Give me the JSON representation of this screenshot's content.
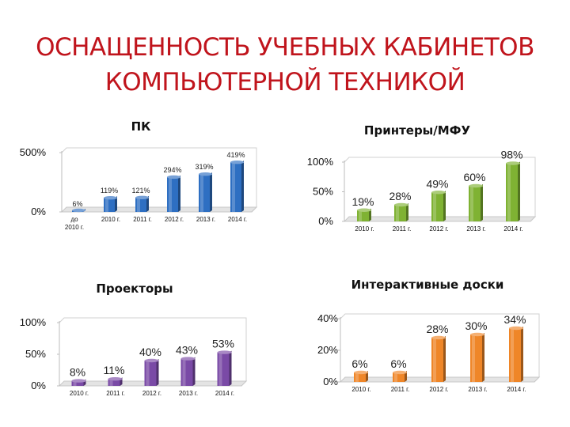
{
  "slide": {
    "title_line1": "ОСНАЩЕННОСТЬ УЧЕБНЫХ КАБИНЕТОВ",
    "title_line2": "КОМПЬЮТЕРНОЙ ТЕХНИКОЙ"
  },
  "colors": {
    "title": "#c0141c",
    "pc": "#2e6fc2",
    "printers": "#7fb233",
    "projectors": "#7a4aa6",
    "boards": "#ef8628"
  },
  "chart_data": [
    {
      "type": "bar",
      "title": "ПК",
      "categories": [
        "до 2010 г.",
        "2010 г.",
        "2011 г.",
        "2012 г.",
        "2013 г.",
        "2014 г."
      ],
      "values": [
        6,
        119,
        121,
        294,
        319,
        419
      ],
      "data_labels": [
        "6%",
        "119%",
        "121%",
        "294%",
        "319%",
        "419%"
      ],
      "ylim": [
        0,
        500
      ],
      "yticks": [
        "0%",
        "500%"
      ],
      "color": "#2e6fc2"
    },
    {
      "type": "bar",
      "title": "Принтеры/МФУ",
      "categories": [
        "2010 г.",
        "2011 г.",
        "2012 г.",
        "2013 г.",
        "2014 г."
      ],
      "values": [
        19,
        28,
        49,
        60,
        98
      ],
      "data_labels": [
        "19%",
        "28%",
        "49%",
        "60%",
        "98%"
      ],
      "ylim": [
        0,
        100
      ],
      "yticks": [
        "0%",
        "50%",
        "100%"
      ],
      "color": "#7fb233"
    },
    {
      "type": "bar",
      "title": "Проекторы",
      "categories": [
        "2010 г.",
        "2011 г.",
        "2012 г.",
        "2013 г.",
        "2014 г."
      ],
      "values": [
        8,
        11,
        40,
        43,
        53
      ],
      "data_labels": [
        "8%",
        "11%",
        "40%",
        "43%",
        "53%"
      ],
      "ylim": [
        0,
        100
      ],
      "yticks": [
        "0%",
        "50%",
        "100%"
      ],
      "color": "#7a4aa6"
    },
    {
      "type": "bar",
      "title": "Интерактивные доски",
      "categories": [
        "2010 г.",
        "2011 г.",
        "2012 г.",
        "2013 г.",
        "2014 г."
      ],
      "values": [
        6,
        6,
        28,
        30,
        34
      ],
      "data_labels": [
        "6%",
        "6%",
        "28%",
        "30%",
        "34%"
      ],
      "ylim": [
        0,
        40
      ],
      "yticks": [
        "0%",
        "20%",
        "40%"
      ],
      "color": "#ef8628"
    }
  ]
}
